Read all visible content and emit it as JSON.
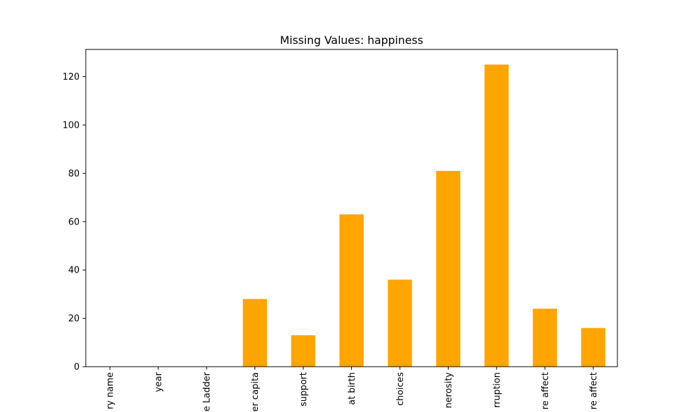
{
  "chart_data": {
    "type": "bar",
    "title": "Missing Values: happiness",
    "categories": [
      "Country name",
      "year",
      "Life Ladder",
      "Log GDP per capita",
      "Social support",
      "Healthy life expectancy at birth",
      "Freedom to make life choices",
      "Generosity",
      "Perceptions of corruption",
      "Positive affect",
      "Negative affect"
    ],
    "visible_tick_labels": [
      "ry name",
      "year",
      "e Ladder",
      "er capita",
      "support",
      "at birth",
      "choices",
      "nerosity",
      "rruption",
      "re affect",
      "re affect"
    ],
    "values": [
      0,
      0,
      0,
      28,
      13,
      63,
      36,
      81,
      125,
      24,
      16
    ],
    "ylim": [
      0,
      131.25
    ],
    "yticks": [
      0,
      20,
      40,
      60,
      80,
      100,
      120
    ],
    "xlabel": "",
    "ylabel": "",
    "grid": false,
    "bar_color": "#FFA500"
  }
}
